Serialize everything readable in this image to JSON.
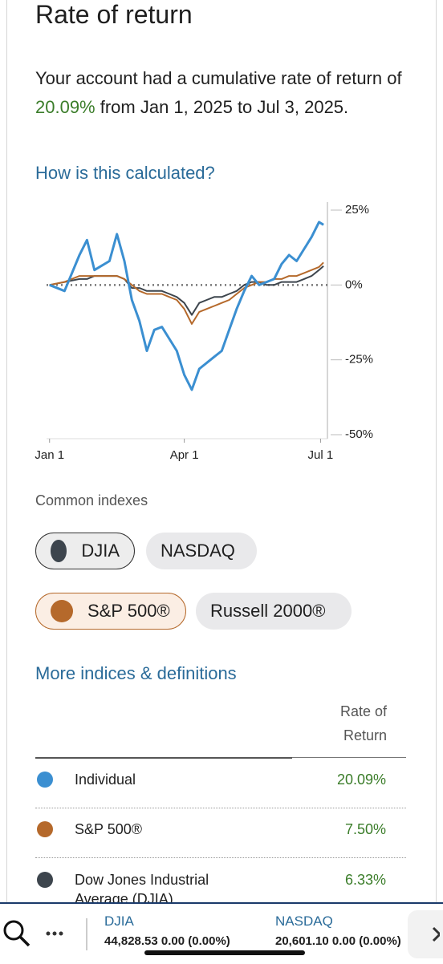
{
  "header": {
    "title": "Rate of return"
  },
  "summary": {
    "before": "Your account had a cumulative rate of return of ",
    "highlight": "20.09%",
    "after": " from Jan 1, 2025 to Jul 3, 2025."
  },
  "help_link": "How is this calculated?",
  "chart_data": {
    "type": "line",
    "x": [
      0,
      10,
      20,
      25,
      30,
      40,
      45,
      50,
      55,
      60,
      65,
      70,
      75,
      80,
      85,
      90,
      95,
      100,
      105,
      110,
      115,
      120,
      125,
      130,
      135,
      140,
      145,
      150,
      155,
      160,
      165,
      170,
      175,
      180,
      183
    ],
    "xlim": [
      -2,
      184
    ],
    "xticks": [
      {
        "value": 0,
        "label": "Jan 1"
      },
      {
        "value": 90,
        "label": "Apr 1"
      },
      {
        "value": 181,
        "label": "Jul 1"
      }
    ],
    "ylim": [
      -50,
      25
    ],
    "yticks": [
      {
        "value": 25,
        "label": "25%"
      },
      {
        "value": 0,
        "label": "0%"
      },
      {
        "value": -25,
        "label": "-25%"
      },
      {
        "value": -50,
        "label": "-50%"
      }
    ],
    "zero_line": true,
    "series": [
      {
        "color": "#3b8fd1",
        "values": [
          0,
          -2,
          10,
          15,
          5,
          8,
          17,
          8,
          -5,
          -12,
          -22,
          -15,
          -14,
          -18,
          -22,
          -30,
          -35,
          -28,
          -26,
          -24,
          -22,
          -15,
          -8,
          -2,
          3,
          0,
          1,
          2,
          7,
          10,
          8,
          12,
          16,
          21,
          20.09
        ]
      },
      {
        "color": "#b5692b",
        "values": [
          0,
          1,
          3,
          3,
          3,
          3,
          3,
          2,
          0,
          -2,
          -3,
          -3,
          -3,
          -4,
          -5,
          -8,
          -13,
          -9,
          -8,
          -7,
          -6,
          -5,
          -3,
          -1,
          0,
          1,
          1,
          2,
          2,
          3,
          3,
          4,
          5,
          6,
          7.5
        ]
      },
      {
        "color": "#3d454d",
        "values": [
          0,
          1,
          2,
          2,
          3,
          3,
          3,
          2,
          -1,
          -1,
          -2,
          -2,
          -2,
          -3,
          -4,
          -6,
          -10,
          -6,
          -5,
          -4,
          -4,
          -3,
          -2,
          0,
          1,
          1,
          0,
          0,
          1,
          1,
          1,
          2,
          3,
          5,
          6.33
        ]
      }
    ]
  },
  "indexes": {
    "title": "Common indexes",
    "chips": [
      {
        "label": "DJIA",
        "selected": true,
        "color": "#3d454d"
      },
      {
        "label": "NASDAQ",
        "selected": false
      },
      {
        "label": "S&P 500®",
        "selected": true,
        "color": "#b5692b"
      },
      {
        "label": "Russell 2000®",
        "selected": false
      }
    ]
  },
  "more_link": "More indices & definitions",
  "table": {
    "header": "Rate of Return",
    "rows": [
      {
        "name": "Individual",
        "value": "20.09%",
        "color": "#3b8fd1"
      },
      {
        "name": "S&P 500®",
        "value": "7.50%",
        "color": "#b5692b"
      },
      {
        "name": "Dow Jones Industrial Average (DJIA)",
        "value": "6.33%",
        "color": "#3d454d"
      }
    ]
  },
  "ticker": [
    {
      "name": "DJIA",
      "quote": "44,828.53 0.00 (0.00%)"
    },
    {
      "name": "NASDAQ",
      "quote": "20,601.10 0.00 (0.00%)"
    }
  ]
}
